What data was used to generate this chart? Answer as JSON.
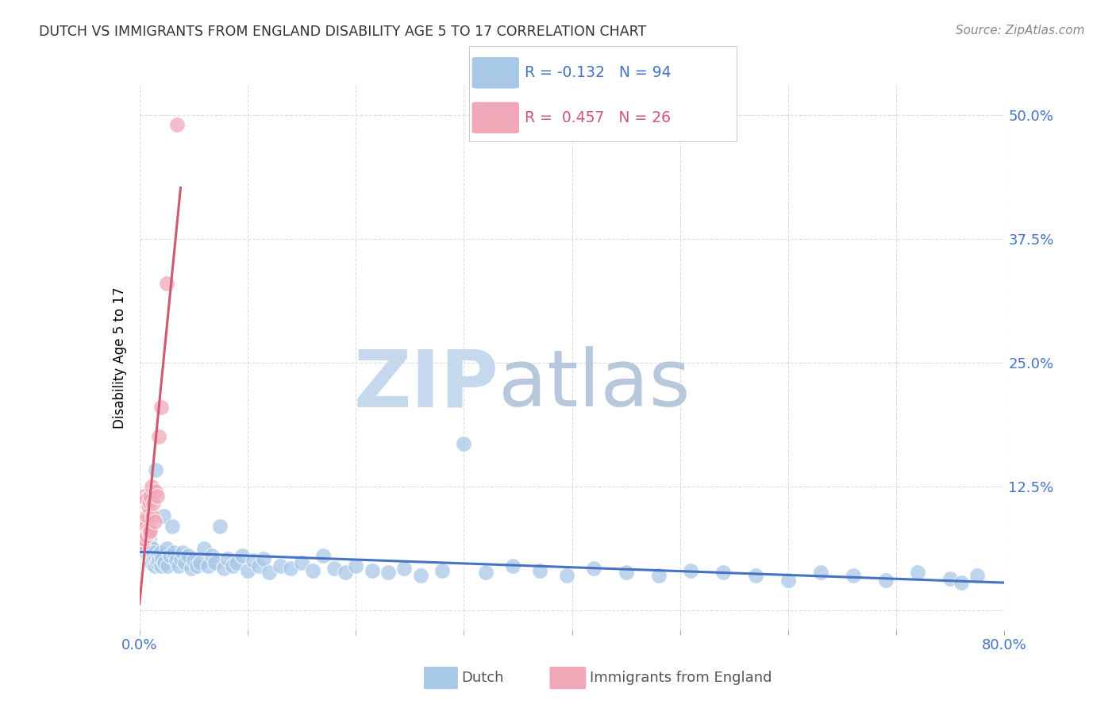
{
  "title": "DUTCH VS IMMIGRANTS FROM ENGLAND DISABILITY AGE 5 TO 17 CORRELATION CHART",
  "source": "Source: ZipAtlas.com",
  "ylabel": "Disability Age 5 to 17",
  "xlim": [
    0.0,
    0.8
  ],
  "ylim": [
    -0.02,
    0.53
  ],
  "ytick_positions": [
    0.0,
    0.125,
    0.25,
    0.375,
    0.5
  ],
  "yticklabels": [
    "",
    "12.5%",
    "25.0%",
    "37.5%",
    "50.0%"
  ],
  "grid_color": "#dddddd",
  "dutch_color": "#a8c8e8",
  "england_color": "#f0a8b8",
  "dutch_trend_color": "#4472c4",
  "england_trend_color": "#d05870",
  "watermark_zip_color": "#c8d8ec",
  "watermark_atlas_color": "#c0cce0",
  "dutch_R": -0.132,
  "dutch_N": 94,
  "england_R": 0.457,
  "england_N": 26,
  "dutch_x": [
    0.002,
    0.003,
    0.004,
    0.005,
    0.005,
    0.006,
    0.006,
    0.007,
    0.007,
    0.008,
    0.008,
    0.009,
    0.009,
    0.01,
    0.01,
    0.011,
    0.011,
    0.012,
    0.012,
    0.013,
    0.013,
    0.014,
    0.015,
    0.015,
    0.016,
    0.017,
    0.018,
    0.019,
    0.02,
    0.021,
    0.022,
    0.023,
    0.025,
    0.026,
    0.028,
    0.03,
    0.032,
    0.034,
    0.036,
    0.038,
    0.04,
    0.042,
    0.045,
    0.048,
    0.05,
    0.053,
    0.056,
    0.06,
    0.063,
    0.067,
    0.07,
    0.074,
    0.078,
    0.082,
    0.086,
    0.09,
    0.095,
    0.1,
    0.105,
    0.11,
    0.115,
    0.12,
    0.13,
    0.14,
    0.15,
    0.16,
    0.17,
    0.18,
    0.19,
    0.2,
    0.215,
    0.23,
    0.245,
    0.26,
    0.28,
    0.3,
    0.32,
    0.345,
    0.37,
    0.395,
    0.42,
    0.45,
    0.48,
    0.51,
    0.54,
    0.57,
    0.6,
    0.63,
    0.66,
    0.69,
    0.72,
    0.75,
    0.76,
    0.775
  ],
  "dutch_y": [
    0.075,
    0.08,
    0.068,
    0.072,
    0.065,
    0.078,
    0.058,
    0.07,
    0.062,
    0.068,
    0.055,
    0.072,
    0.06,
    0.065,
    0.052,
    0.058,
    0.048,
    0.055,
    0.062,
    0.05,
    0.058,
    0.045,
    0.052,
    0.142,
    0.048,
    0.055,
    0.05,
    0.058,
    0.045,
    0.052,
    0.095,
    0.048,
    0.062,
    0.045,
    0.055,
    0.085,
    0.058,
    0.05,
    0.045,
    0.052,
    0.058,
    0.048,
    0.055,
    0.042,
    0.05,
    0.045,
    0.048,
    0.062,
    0.045,
    0.055,
    0.048,
    0.085,
    0.042,
    0.052,
    0.045,
    0.048,
    0.055,
    0.04,
    0.05,
    0.045,
    0.052,
    0.038,
    0.045,
    0.042,
    0.048,
    0.04,
    0.055,
    0.042,
    0.038,
    0.045,
    0.04,
    0.038,
    0.042,
    0.035,
    0.04,
    0.168,
    0.038,
    0.045,
    0.04,
    0.035,
    0.042,
    0.038,
    0.035,
    0.04,
    0.038,
    0.035,
    0.03,
    0.038,
    0.035,
    0.03,
    0.038,
    0.032,
    0.028,
    0.035
  ],
  "england_x": [
    0.002,
    0.003,
    0.004,
    0.004,
    0.005,
    0.005,
    0.006,
    0.006,
    0.007,
    0.007,
    0.008,
    0.008,
    0.009,
    0.009,
    0.01,
    0.01,
    0.011,
    0.012,
    0.013,
    0.014,
    0.015,
    0.016,
    0.018,
    0.02,
    0.025,
    0.035
  ],
  "england_y": [
    0.075,
    0.068,
    0.072,
    0.115,
    0.08,
    0.09,
    0.085,
    0.112,
    0.075,
    0.095,
    0.082,
    0.105,
    0.078,
    0.11,
    0.08,
    0.115,
    0.125,
    0.095,
    0.108,
    0.09,
    0.12,
    0.115,
    0.175,
    0.205,
    0.33,
    0.49
  ]
}
